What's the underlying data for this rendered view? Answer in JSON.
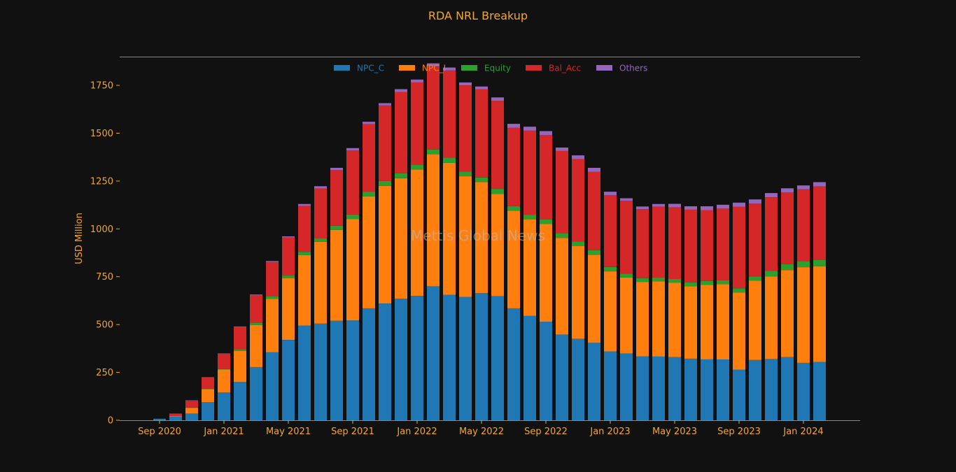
{
  "colors": {
    "background": "#111111",
    "text": "#f5a623",
    "axis": "#6f8fa0",
    "watermark": "#b9b9b9"
  },
  "chart_data": {
    "type": "bar",
    "stacked": true,
    "title": "RDA NRL Breakup",
    "ylabel": "USD Million",
    "xlabel": "",
    "watermark": "Mettis Global News",
    "ylim": [
      0,
      1900
    ],
    "yticks": [
      0,
      250,
      500,
      750,
      1000,
      1250,
      1500,
      1750
    ],
    "legend_position": "top-center",
    "grid": false,
    "x": [
      "2020-09",
      "2020-10",
      "2020-11",
      "2020-12",
      "2021-01",
      "2021-02",
      "2021-03",
      "2021-04",
      "2021-05",
      "2021-06",
      "2021-07",
      "2021-08",
      "2021-09",
      "2021-10",
      "2021-11",
      "2021-12",
      "2022-01",
      "2022-02",
      "2022-03",
      "2022-04",
      "2022-05",
      "2022-06",
      "2022-07",
      "2022-08",
      "2022-09",
      "2022-10",
      "2022-11",
      "2022-12",
      "2023-01",
      "2023-02",
      "2023-03",
      "2023-04",
      "2023-05",
      "2023-06",
      "2023-07",
      "2023-08",
      "2023-09",
      "2023-10",
      "2023-11",
      "2023-12",
      "2024-01",
      "2024-02"
    ],
    "x_ticks": [
      {
        "date": "2020-09",
        "label": "Sep 2020"
      },
      {
        "date": "2021-01",
        "label": "Jan 2021"
      },
      {
        "date": "2021-05",
        "label": "May 2021"
      },
      {
        "date": "2021-09",
        "label": "Sep 2021"
      },
      {
        "date": "2022-01",
        "label": "Jan 2022"
      },
      {
        "date": "2022-05",
        "label": "May 2022"
      },
      {
        "date": "2022-09",
        "label": "Sep 2022"
      },
      {
        "date": "2023-01",
        "label": "Jan 2023"
      },
      {
        "date": "2023-05",
        "label": "May 2023"
      },
      {
        "date": "2023-09",
        "label": "Sep 2023"
      },
      {
        "date": "2024-01",
        "label": "Jan 2024"
      }
    ],
    "series": [
      {
        "name": "NPC_C",
        "color": "#1f77b4",
        "values": [
          8,
          20,
          35,
          95,
          145,
          200,
          278,
          355,
          420,
          495,
          505,
          520,
          522,
          585,
          610,
          635,
          650,
          700,
          655,
          645,
          665,
          648,
          585,
          545,
          515,
          448,
          425,
          405,
          360,
          348,
          333,
          333,
          330,
          322,
          318,
          318,
          265,
          315,
          320,
          330,
          300,
          305
        ]
      },
      {
        "name": "NPC_I",
        "color": "#ff7f0e",
        "values": [
          0,
          2,
          30,
          68,
          120,
          163,
          220,
          280,
          322,
          368,
          428,
          475,
          530,
          585,
          615,
          630,
          660,
          690,
          690,
          630,
          580,
          535,
          510,
          505,
          510,
          505,
          485,
          460,
          418,
          398,
          390,
          393,
          388,
          378,
          390,
          393,
          403,
          415,
          432,
          455,
          500,
          500
        ]
      },
      {
        "name": "Equity",
        "color": "#2ca02c",
        "values": [
          0,
          0,
          2,
          2,
          3,
          8,
          10,
          12,
          14,
          17,
          18,
          22,
          23,
          23,
          25,
          25,
          25,
          25,
          28,
          25,
          24,
          26,
          24,
          24,
          26,
          24,
          24,
          24,
          23,
          20,
          20,
          20,
          20,
          20,
          20,
          20,
          22,
          22,
          28,
          30,
          32,
          32
        ]
      },
      {
        "name": "Bal_Acc",
        "color": "#d62728",
        "values": [
          0,
          12,
          35,
          58,
          78,
          116,
          145,
          180,
          200,
          240,
          260,
          290,
          335,
          355,
          395,
          425,
          430,
          435,
          455,
          450,
          460,
          460,
          410,
          440,
          440,
          430,
          430,
          410,
          375,
          380,
          360,
          370,
          375,
          380,
          370,
          375,
          425,
          380,
          385,
          375,
          375,
          385
        ]
      },
      {
        "name": "Others",
        "color": "#9467bd",
        "values": [
          0,
          1,
          2,
          2,
          3,
          3,
          4,
          5,
          5,
          10,
          12,
          12,
          12,
          12,
          12,
          15,
          15,
          15,
          15,
          15,
          15,
          18,
          20,
          20,
          20,
          18,
          20,
          20,
          18,
          14,
          14,
          14,
          18,
          18,
          20,
          20,
          22,
          22,
          22,
          22,
          20,
          22
        ]
      }
    ]
  }
}
